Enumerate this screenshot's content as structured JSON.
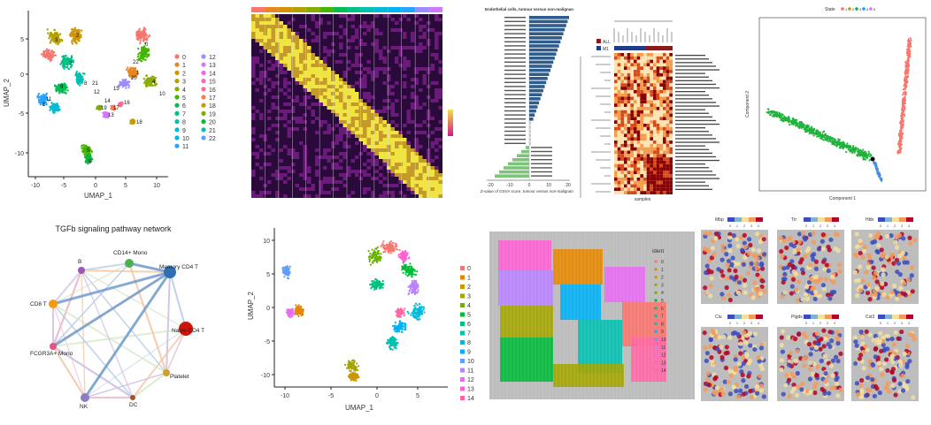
{
  "umap_top": {
    "xlabel": "UMAP_1",
    "ylabel": "UMAP_2",
    "xticks": [
      "-10",
      "-5",
      "0",
      "5",
      "10"
    ],
    "yticks": [
      "-10",
      "-5",
      "0",
      "5"
    ],
    "legend": [
      "0",
      "1",
      "2",
      "3",
      "4",
      "5",
      "6",
      "7",
      "8",
      "9",
      "10",
      "11",
      "12",
      "13",
      "14",
      "15",
      "16",
      "17",
      "18",
      "19",
      "20",
      "21",
      "22"
    ],
    "colors": [
      "#f8766d",
      "#e7851e",
      "#d09400",
      "#b2a100",
      "#89ac00",
      "#45b500",
      "#00bc51",
      "#00c087",
      "#00c0b2",
      "#00bcd6",
      "#00b3f2",
      "#29a3ff",
      "#9c8dff",
      "#d277ff",
      "#f166e8",
      "#ff61c7",
      "#ff6c91",
      "#f87b5a",
      "#c99800",
      "#7cae00",
      "#00ba38",
      "#00c19f",
      "#619cff"
    ],
    "cluster_labels": [
      "3",
      "2",
      "7",
      "8",
      "11",
      "9",
      "6",
      "0",
      "5",
      "1",
      "4",
      "10",
      "13",
      "16",
      "18",
      "19",
      "17",
      "5",
      "12",
      "20",
      "14",
      "15",
      "22",
      "21"
    ]
  },
  "heatmap": {
    "bar_colors": [
      "#f8766d",
      "#e7851e",
      "#d09400",
      "#b2a100",
      "#89ac00",
      "#45b500",
      "#00bc51",
      "#00c087",
      "#00c0b2",
      "#00bcd6",
      "#00b3f2",
      "#29a3ff",
      "#9c8dff",
      "#d277ff"
    ]
  },
  "barchart": {
    "title": "Endothelial cells, tumour versus non-malignant",
    "xlabel": "Z-value of GSVA score, tumour versus non-malignant",
    "xticks": [
      "-20",
      "-10",
      "0",
      "10",
      "20"
    ]
  },
  "clustered_heatmap": {
    "legend": [
      "ALL",
      "M1"
    ],
    "legend_colors": [
      "#8b1a1a",
      "#1f3c88"
    ],
    "xlabel": "samples"
  },
  "trajectory": {
    "legend_title": "State",
    "legend_items": [
      "1",
      "2",
      "3",
      "4",
      "5"
    ],
    "xlabel": "Component 1",
    "ylabel": "Component 2"
  },
  "network": {
    "title": "TGFb signaling pathway network",
    "nodes": [
      {
        "label": "B",
        "color": "#9b59b6"
      },
      {
        "label": "CD14+ Mono",
        "color": "#4caf50"
      },
      {
        "label": "Memory CD4 T",
        "color": "#2f6fb3"
      },
      {
        "label": "CD8 T",
        "color": "#f39c12"
      },
      {
        "label": "Naive CD4 T",
        "color": "#d0140c"
      },
      {
        "label": "FCGR3A+ Mono",
        "color": "#e75480"
      },
      {
        "label": "Platelet",
        "color": "#c9a227"
      },
      {
        "label": "NK",
        "color": "#8e7cc3"
      },
      {
        "label": "DC",
        "color": "#a0522d"
      }
    ]
  },
  "umap_bottom": {
    "xlabel": "UMAP_1",
    "ylabel": "UMAP_2",
    "xticks": [
      "-10",
      "-5",
      "0",
      "5"
    ],
    "yticks": [
      "-10",
      "-5",
      "0",
      "5",
      "10"
    ],
    "legend": [
      "0",
      "1",
      "2",
      "3",
      "4",
      "5",
      "6",
      "7",
      "8",
      "9",
      "10",
      "11",
      "12",
      "13",
      "14"
    ],
    "colors": [
      "#f8766d",
      "#e58700",
      "#c99800",
      "#a3a500",
      "#6bb100",
      "#00ba38",
      "#00bf7d",
      "#00c0af",
      "#00bcd8",
      "#00b0f6",
      "#619cff",
      "#b983ff",
      "#e76bf3",
      "#fd61d1",
      "#ff67a4"
    ]
  },
  "spatial": {
    "legend_title": "ident",
    "legend": [
      "0",
      "1",
      "2",
      "3",
      "4",
      "5",
      "6",
      "7",
      "8",
      "9",
      "10",
      "11",
      "12",
      "13",
      "14"
    ]
  },
  "feature_maps": {
    "titles": [
      "Mbp",
      "Ttr",
      "Hbb",
      "Clu",
      "Ptgds",
      "Cst3"
    ],
    "scale_ticks": [
      "0",
      "1",
      "2",
      "3",
      "4"
    ]
  }
}
